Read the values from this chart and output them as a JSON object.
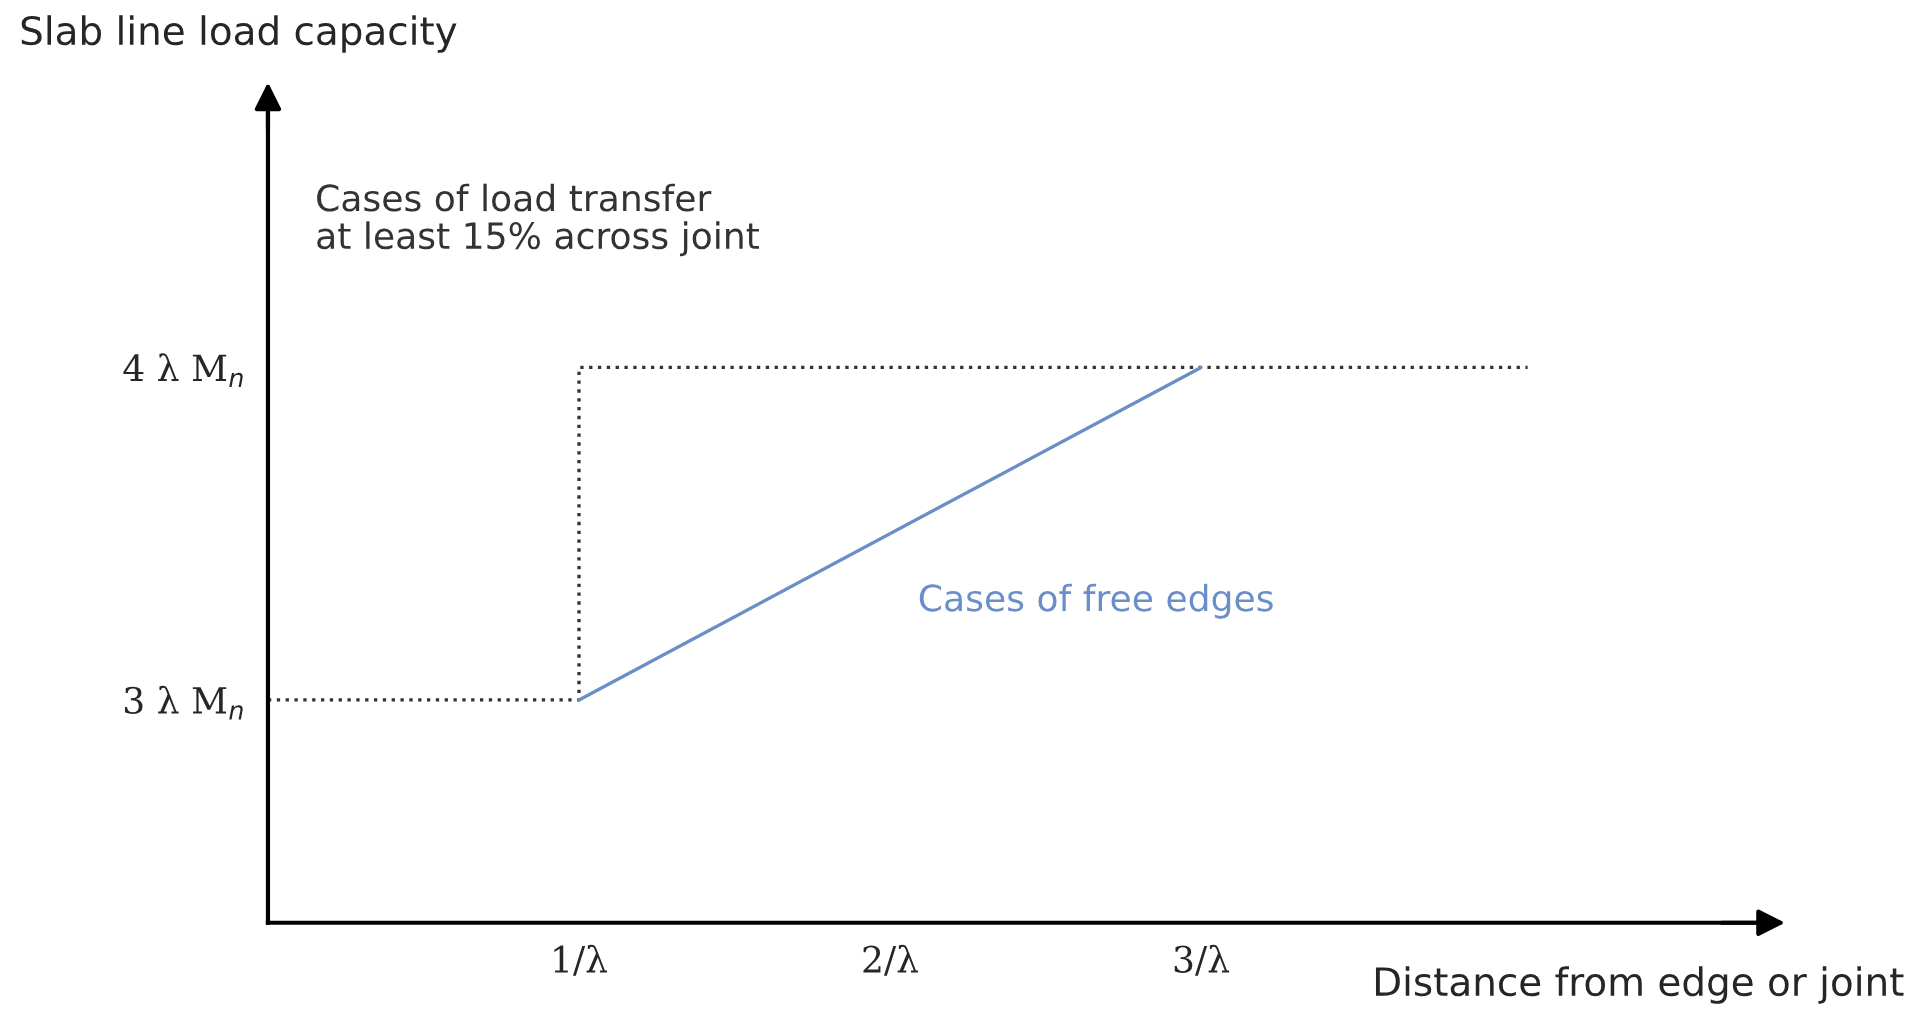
{
  "chart_data": {
    "type": "line",
    "title": "Slab line load capacity",
    "xlabel": "Distance from edge or joint",
    "series": [
      {
        "name": "Cases of load transfer\nat least 15% across joint",
        "color": "#333333",
        "line_style": "dotted",
        "x": [
          0,
          1,
          1,
          4.05
        ],
        "values": [
          3,
          3,
          4,
          4
        ]
      },
      {
        "name": "Cases of free edges",
        "color": "#6a8fc8",
        "line_style": "solid",
        "x": [
          1,
          3
        ],
        "values": [
          3,
          4
        ]
      }
    ],
    "xlim": [
      0,
      4.8
    ],
    "ylim": [
      2.33,
      4.8
    ],
    "xticks": [
      {
        "value": 1,
        "label": "1/λ"
      },
      {
        "value": 2,
        "label": "2/λ"
      },
      {
        "value": 3,
        "label": "3/λ"
      }
    ],
    "yticks": [
      {
        "value": 3,
        "label": "3 λ M$_{n}$"
      },
      {
        "value": 4,
        "label": "4 λ M$_{n}$"
      }
    ],
    "grid": false,
    "legend": false,
    "marker": "none"
  }
}
